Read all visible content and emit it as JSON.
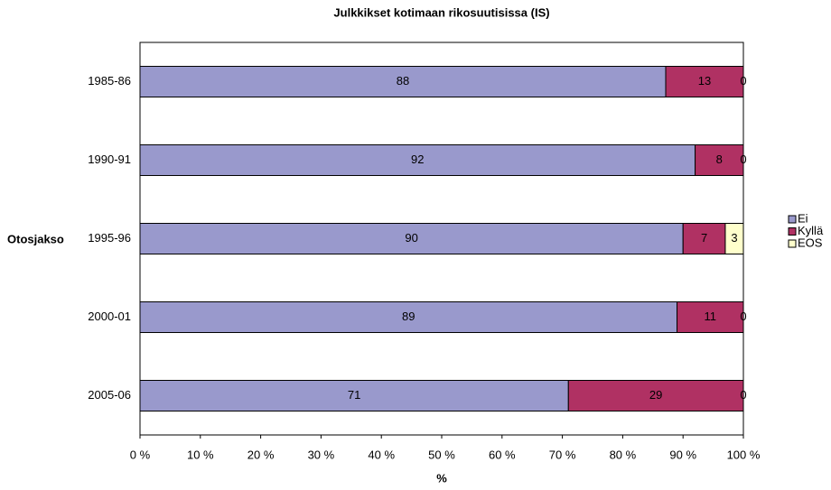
{
  "chart_data": {
    "type": "bar",
    "orientation": "horizontal",
    "stacking": "percent",
    "title": "Julkkikset kotimaan rikosuutisissa (IS)",
    "y_axis_label": "Otosjakso",
    "x_axis_label": "%",
    "categories": [
      "1985-86",
      "1990-91",
      "1995-96",
      "2000-01",
      "2005-06"
    ],
    "series": [
      {
        "name": "Ei",
        "color": "#9999cc",
        "values": [
          88,
          92,
          90,
          89,
          71
        ]
      },
      {
        "name": "Kyllä",
        "color": "#b03163",
        "values": [
          13,
          8,
          7,
          11,
          29
        ]
      },
      {
        "name": "EOS",
        "color": "#ffffcc",
        "values": [
          0,
          0,
          3,
          0,
          0
        ]
      }
    ],
    "xlim": [
      0,
      100
    ],
    "xticks": [
      {
        "value": 0,
        "label": "0 %"
      },
      {
        "value": 10,
        "label": "10 %"
      },
      {
        "value": 20,
        "label": "20 %"
      },
      {
        "value": 30,
        "label": "30 %"
      },
      {
        "value": 40,
        "label": "40 %"
      },
      {
        "value": 50,
        "label": "50 %"
      },
      {
        "value": 60,
        "label": "60 %"
      },
      {
        "value": 70,
        "label": "70 %"
      },
      {
        "value": 80,
        "label": "80 %"
      },
      {
        "value": 90,
        "label": "90 %"
      },
      {
        "value": 100,
        "label": "100 %"
      }
    ],
    "legend": "right",
    "grid": false
  }
}
